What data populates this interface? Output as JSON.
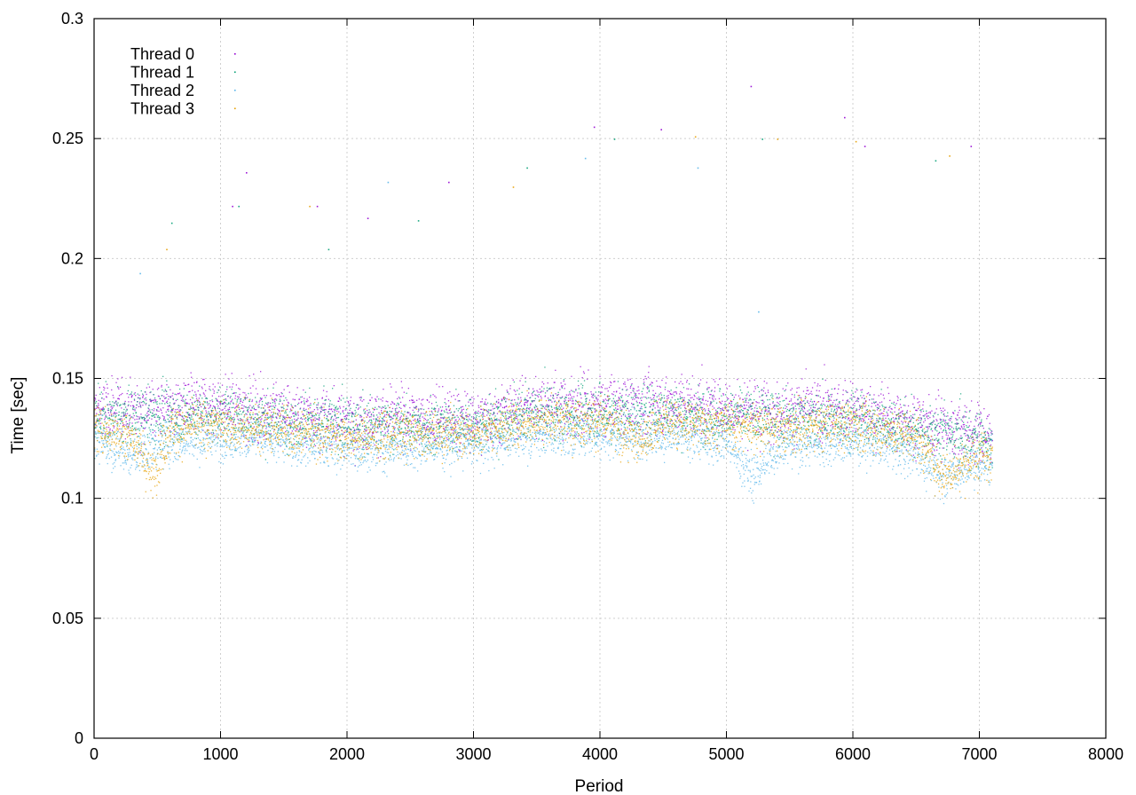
{
  "chart_data": {
    "type": "scatter",
    "title": "",
    "xlabel": "Period",
    "ylabel": "Time [sec]",
    "xlim": [
      0,
      8000
    ],
    "ylim": [
      0,
      0.3
    ],
    "x_ticks": [
      0,
      1000,
      2000,
      3000,
      4000,
      5000,
      6000,
      7000,
      8000
    ],
    "y_ticks": [
      0,
      0.05,
      0.1,
      0.15,
      0.2,
      0.25,
      0.3
    ],
    "x_tick_labels": [
      "0",
      "1000",
      "2000",
      "3000",
      "4000",
      "5000",
      "6000",
      "7000",
      "8000"
    ],
    "y_tick_labels": [
      "0",
      "0.05",
      "0.1",
      "0.15",
      "0.2",
      "0.25",
      "0.3"
    ],
    "grid": true,
    "legend_position": "top-left",
    "x_range_of_data": [
      0,
      7100
    ],
    "series": [
      {
        "name": "Thread 0",
        "color": "#9400d3",
        "marker": "dot",
        "trend": [
          [
            0,
            0.137
          ],
          [
            500,
            0.138
          ],
          [
            1000,
            0.139
          ],
          [
            1500,
            0.136
          ],
          [
            2000,
            0.133
          ],
          [
            2500,
            0.134
          ],
          [
            3000,
            0.133
          ],
          [
            3500,
            0.14
          ],
          [
            4000,
            0.139
          ],
          [
            4500,
            0.14
          ],
          [
            5000,
            0.138
          ],
          [
            5500,
            0.137
          ],
          [
            6000,
            0.137
          ],
          [
            6500,
            0.132
          ],
          [
            7100,
            0.126
          ]
        ],
        "outliers": [
          [
            1090,
            0.222
          ],
          [
            1200,
            0.236
          ],
          [
            1760,
            0.222
          ],
          [
            2160,
            0.217
          ],
          [
            2800,
            0.232
          ],
          [
            3950,
            0.255
          ],
          [
            4480,
            0.254
          ],
          [
            5190,
            0.272
          ],
          [
            5930,
            0.259
          ],
          [
            6090,
            0.247
          ],
          [
            6930,
            0.247
          ]
        ]
      },
      {
        "name": "Thread 1",
        "color": "#009e73",
        "marker": "dot",
        "trend": [
          [
            0,
            0.134
          ],
          [
            500,
            0.135
          ],
          [
            1000,
            0.136
          ],
          [
            1500,
            0.133
          ],
          [
            2000,
            0.131
          ],
          [
            2500,
            0.131
          ],
          [
            3000,
            0.131
          ],
          [
            3500,
            0.136
          ],
          [
            4000,
            0.136
          ],
          [
            4500,
            0.137
          ],
          [
            5000,
            0.135
          ],
          [
            5500,
            0.134
          ],
          [
            6000,
            0.134
          ],
          [
            6500,
            0.129
          ],
          [
            7100,
            0.124
          ]
        ],
        "outliers": [
          [
            610,
            0.215
          ],
          [
            1140,
            0.222
          ],
          [
            1850,
            0.204
          ],
          [
            2560,
            0.216
          ],
          [
            3420,
            0.238
          ],
          [
            4110,
            0.25
          ],
          [
            5280,
            0.25
          ],
          [
            6650,
            0.241
          ]
        ]
      },
      {
        "name": "Thread 2",
        "color": "#56b4e9",
        "marker": "dot",
        "trend": [
          [
            0,
            0.125
          ],
          [
            300,
            0.118
          ],
          [
            600,
            0.124
          ],
          [
            1000,
            0.126
          ],
          [
            1500,
            0.124
          ],
          [
            2000,
            0.121
          ],
          [
            2500,
            0.122
          ],
          [
            3000,
            0.123
          ],
          [
            3500,
            0.127
          ],
          [
            4000,
            0.127
          ],
          [
            4500,
            0.126
          ],
          [
            5000,
            0.124
          ],
          [
            5200,
            0.109
          ],
          [
            5400,
            0.122
          ],
          [
            6000,
            0.124
          ],
          [
            6500,
            0.119
          ],
          [
            6700,
            0.11
          ],
          [
            7100,
            0.116
          ]
        ],
        "outliers": [
          [
            360,
            0.194
          ],
          [
            2320,
            0.232
          ],
          [
            3880,
            0.242
          ],
          [
            4770,
            0.238
          ],
          [
            5250,
            0.178
          ]
        ]
      },
      {
        "name": "Thread 3",
        "color": "#e69f00",
        "marker": "dot",
        "trend": [
          [
            0,
            0.13
          ],
          [
            300,
            0.126
          ],
          [
            450,
            0.11
          ],
          [
            600,
            0.129
          ],
          [
            1000,
            0.131
          ],
          [
            1500,
            0.129
          ],
          [
            2000,
            0.126
          ],
          [
            2500,
            0.127
          ],
          [
            3000,
            0.128
          ],
          [
            3500,
            0.133
          ],
          [
            4000,
            0.133
          ],
          [
            4300,
            0.124
          ],
          [
            4500,
            0.132
          ],
          [
            5000,
            0.131
          ],
          [
            5500,
            0.13
          ],
          [
            6000,
            0.131
          ],
          [
            6500,
            0.126
          ],
          [
            6700,
            0.11
          ],
          [
            7100,
            0.12
          ]
        ],
        "outliers": [
          [
            570,
            0.204
          ],
          [
            1700,
            0.222
          ],
          [
            3310,
            0.23
          ],
          [
            4750,
            0.251
          ],
          [
            5400,
            0.25
          ],
          [
            6020,
            0.249
          ],
          [
            6760,
            0.243
          ]
        ]
      }
    ]
  }
}
